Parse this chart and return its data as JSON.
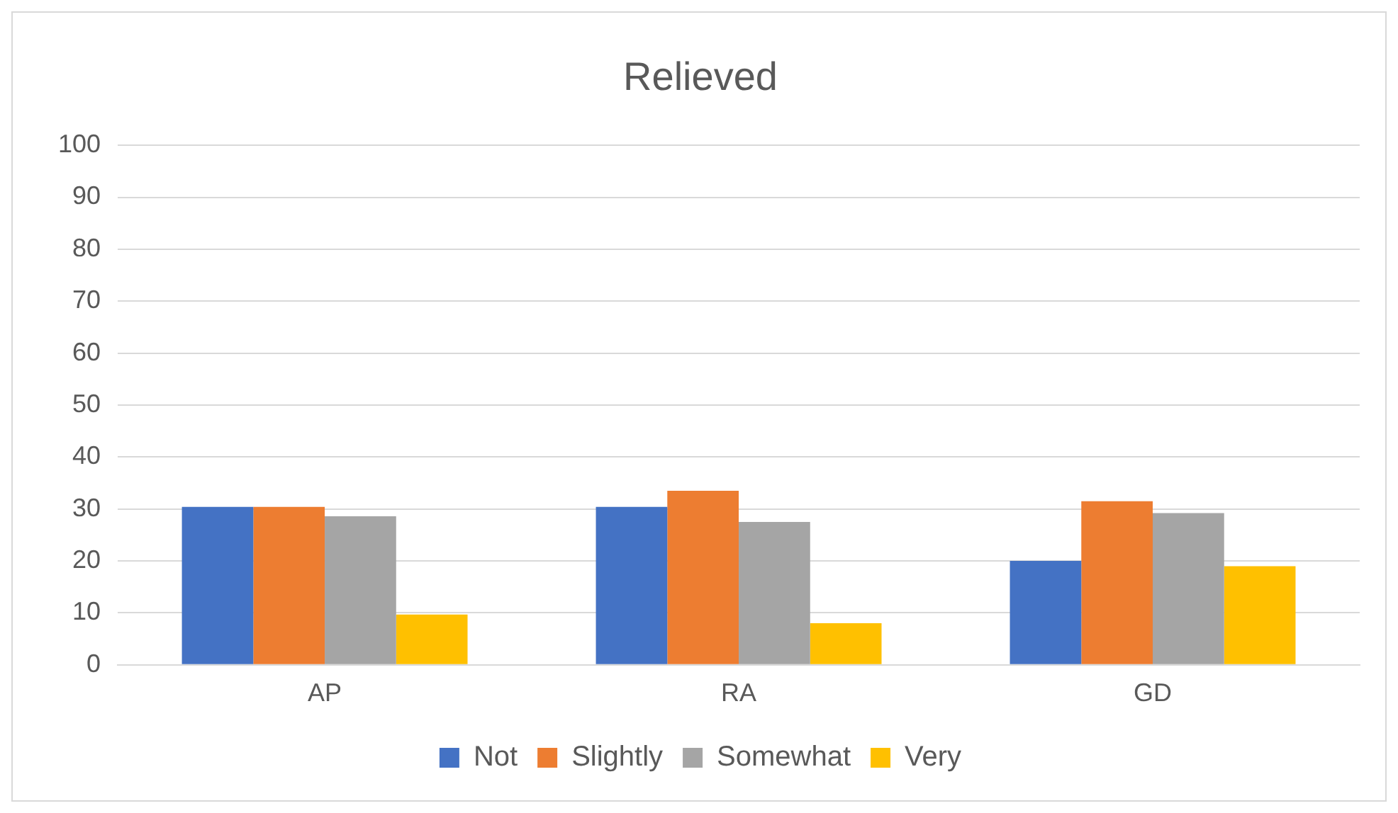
{
  "chart_data": {
    "type": "bar",
    "title": "Relieved",
    "categories": [
      "AP",
      "RA",
      "GD"
    ],
    "series": [
      {
        "name": "Not",
        "color": "#4472c4",
        "values": [
          30.4,
          30.4,
          20
        ]
      },
      {
        "name": "Slightly",
        "color": "#ed7d31",
        "values": [
          30.4,
          33.5,
          31.5
        ]
      },
      {
        "name": "Somewhat",
        "color": "#a5a5a5",
        "values": [
          28.6,
          27.5,
          29.2
        ]
      },
      {
        "name": "Very",
        "color": "#ffc000",
        "values": [
          9.7,
          8,
          19
        ]
      }
    ],
    "ylim": [
      0,
      100
    ],
    "yticks": [
      0,
      10,
      20,
      30,
      40,
      50,
      60,
      70,
      80,
      90,
      100
    ],
    "grid": "y",
    "legend": "bottom"
  }
}
